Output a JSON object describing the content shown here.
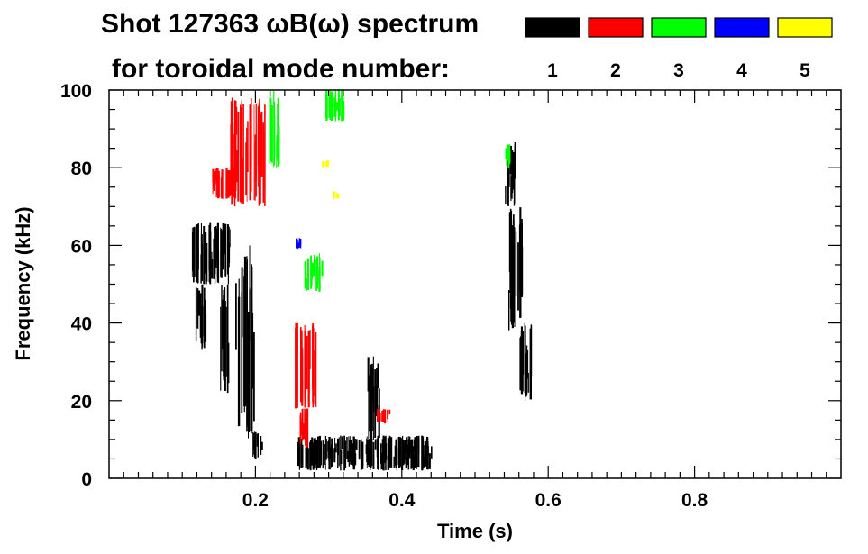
{
  "chart_data": {
    "type": "heatmap",
    "title": "Shot 127363 ωB(ω) spectrum",
    "subtitle": "for toroidal mode number:",
    "xlabel": "Time (s)",
    "ylabel": "Frequency (kHz)",
    "xlim": [
      0.0,
      1.0
    ],
    "ylim": [
      0,
      100
    ],
    "x_ticks": [
      {
        "value": 0.2,
        "label": "0.2"
      },
      {
        "value": 0.4,
        "label": "0.4"
      },
      {
        "value": 0.6,
        "label": "0.6"
      },
      {
        "value": 0.8,
        "label": "0.8"
      }
    ],
    "y_ticks": [
      {
        "value": 0,
        "label": "0"
      },
      {
        "value": 20,
        "label": "20"
      },
      {
        "value": 40,
        "label": "40"
      },
      {
        "value": 60,
        "label": "60"
      },
      {
        "value": 80,
        "label": "80"
      },
      {
        "value": 100,
        "label": "100"
      }
    ],
    "legend": {
      "placement": "top-right",
      "entries": [
        {
          "mode": "1",
          "color": "#000000"
        },
        {
          "mode": "2",
          "color": "#ff0000"
        },
        {
          "mode": "3",
          "color": "#00ff00"
        },
        {
          "mode": "4",
          "color": "#0000ff"
        },
        {
          "mode": "5",
          "color": "#ffff00"
        }
      ]
    },
    "features": [
      {
        "mode": 1,
        "t0": 0.113,
        "t1": 0.165,
        "f0": 50,
        "f1": 66
      },
      {
        "mode": 1,
        "t0": 0.118,
        "t1": 0.132,
        "f0": 33,
        "f1": 50
      },
      {
        "mode": 1,
        "t0": 0.15,
        "t1": 0.162,
        "f0": 22,
        "f1": 50
      },
      {
        "mode": 1,
        "t0": 0.172,
        "t1": 0.198,
        "f0": 10,
        "f1": 60
      },
      {
        "mode": 1,
        "t0": 0.196,
        "t1": 0.208,
        "f0": 5,
        "f1": 12
      },
      {
        "mode": 1,
        "t0": 0.255,
        "t1": 0.44,
        "f0": 2,
        "f1": 11
      },
      {
        "mode": 1,
        "t0": 0.35,
        "t1": 0.368,
        "f0": 8,
        "f1": 32
      },
      {
        "mode": 1,
        "t0": 0.54,
        "t1": 0.555,
        "f0": 70,
        "f1": 88
      },
      {
        "mode": 1,
        "t0": 0.545,
        "t1": 0.565,
        "f0": 38,
        "f1": 70
      },
      {
        "mode": 1,
        "t0": 0.56,
        "t1": 0.578,
        "f0": 20,
        "f1": 40
      },
      {
        "mode": 2,
        "t0": 0.165,
        "t1": 0.212,
        "f0": 70,
        "f1": 98
      },
      {
        "mode": 2,
        "t0": 0.14,
        "t1": 0.172,
        "f0": 72,
        "f1": 80
      },
      {
        "mode": 2,
        "t0": 0.252,
        "t1": 0.282,
        "f0": 18,
        "f1": 40
      },
      {
        "mode": 2,
        "t0": 0.258,
        "t1": 0.27,
        "f0": 8,
        "f1": 18
      },
      {
        "mode": 2,
        "t0": 0.365,
        "t1": 0.385,
        "f0": 14,
        "f1": 18
      },
      {
        "mode": 3,
        "t0": 0.218,
        "t1": 0.232,
        "f0": 80,
        "f1": 100
      },
      {
        "mode": 3,
        "t0": 0.266,
        "t1": 0.29,
        "f0": 48,
        "f1": 58
      },
      {
        "mode": 3,
        "t0": 0.295,
        "t1": 0.32,
        "f0": 92,
        "f1": 100
      },
      {
        "mode": 3,
        "t0": 0.54,
        "t1": 0.55,
        "f0": 80,
        "f1": 86
      },
      {
        "mode": 4,
        "t0": 0.254,
        "t1": 0.262,
        "f0": 59,
        "f1": 62
      },
      {
        "mode": 5,
        "t0": 0.29,
        "t1": 0.3,
        "f0": 80,
        "f1": 82
      },
      {
        "mode": 5,
        "t0": 0.305,
        "t1": 0.312,
        "f0": 72,
        "f1": 74
      }
    ]
  }
}
